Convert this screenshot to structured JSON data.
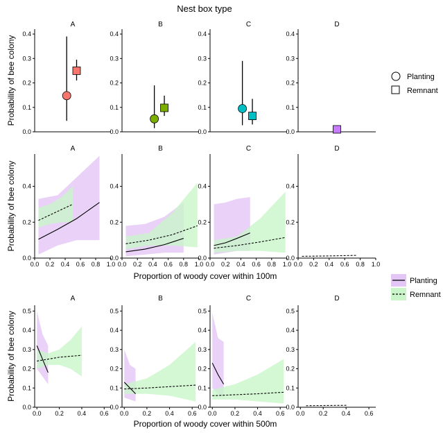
{
  "figure": {
    "top_title": "Nest box type",
    "ylabel": "Probability of bee colony",
    "legend_top": [
      {
        "label": "Planting",
        "shape": "circle"
      },
      {
        "label": "Remnant",
        "shape": "square"
      }
    ],
    "legend_bottom": [
      {
        "label": "Planting",
        "line": "solid"
      },
      {
        "label": "Remnant",
        "line": "dashed"
      }
    ],
    "colors": {
      "A": "#F8766D",
      "B": "#7CAE00",
      "C": "#00BFC4",
      "D": "#C77CFF",
      "planting_band": "#E3C6F5",
      "remnant_band": "#C9F5C9",
      "overlap_band": "#A9CFBE"
    }
  },
  "chart_data": [
    {
      "type": "scatter",
      "panel_row": "nest-box-type",
      "facets": [
        "A",
        "B",
        "C",
        "D"
      ],
      "ylim": [
        0,
        0.42
      ],
      "yticks": [
        "0.0",
        "0.1",
        "0.2",
        "0.3",
        "0.4"
      ],
      "points": [
        {
          "facet": "A",
          "group": "Planting",
          "y": 0.148,
          "lo": 0.045,
          "hi": 0.39
        },
        {
          "facet": "A",
          "group": "Remnant",
          "y": 0.25,
          "lo": 0.21,
          "hi": 0.295
        },
        {
          "facet": "B",
          "group": "Planting",
          "y": 0.053,
          "lo": 0.015,
          "hi": 0.19
        },
        {
          "facet": "B",
          "group": "Remnant",
          "y": 0.098,
          "lo": 0.065,
          "hi": 0.148
        },
        {
          "facet": "C",
          "group": "Planting",
          "y": 0.095,
          "lo": 0.027,
          "hi": 0.29
        },
        {
          "facet": "C",
          "group": "Remnant",
          "y": 0.065,
          "lo": 0.03,
          "hi": 0.135
        },
        {
          "facet": "D",
          "group": "Remnant",
          "y": 0.01,
          "lo": 0.01,
          "hi": 0.01
        }
      ]
    },
    {
      "type": "line",
      "panel_row": "woody-cover-100m",
      "xlabel": "Proportion of woody cover within 100m",
      "facets": [
        "A",
        "B",
        "C",
        "D"
      ],
      "xlim": [
        0,
        1
      ],
      "xticks": [
        "0.0",
        "0.2",
        "0.4",
        "0.6",
        "0.8",
        "1.0"
      ],
      "ylim": [
        0,
        0.58
      ],
      "yticks": [
        "0.0",
        "0.2",
        "0.4"
      ],
      "series": [
        {
          "facet": "A",
          "name": "Planting",
          "x": [
            0.05,
            0.3,
            0.55,
            0.85
          ],
          "y": [
            0.105,
            0.16,
            0.22,
            0.31
          ],
          "lo": [
            0.02,
            0.07,
            0.1,
            0.1
          ],
          "hi": [
            0.33,
            0.35,
            0.45,
            0.57
          ]
        },
        {
          "facet": "A",
          "name": "Remnant",
          "x": [
            0.05,
            0.2,
            0.35,
            0.5
          ],
          "y": [
            0.21,
            0.24,
            0.27,
            0.3
          ],
          "lo": [
            0.17,
            0.19,
            0.2,
            0.2
          ],
          "hi": [
            0.28,
            0.3,
            0.34,
            0.4
          ]
        },
        {
          "facet": "B",
          "name": "Planting",
          "x": [
            0.05,
            0.3,
            0.55,
            0.8
          ],
          "y": [
            0.035,
            0.05,
            0.075,
            0.11
          ],
          "lo": [
            0.01,
            0.02,
            0.03,
            0.03
          ],
          "hi": [
            0.18,
            0.19,
            0.23,
            0.31
          ]
        },
        {
          "facet": "B",
          "name": "Remnant",
          "x": [
            0.05,
            0.35,
            0.65,
            0.98
          ],
          "y": [
            0.08,
            0.1,
            0.13,
            0.18
          ],
          "lo": [
            0.05,
            0.07,
            0.07,
            0.06
          ],
          "hi": [
            0.12,
            0.14,
            0.25,
            0.42
          ]
        },
        {
          "facet": "C",
          "name": "Planting",
          "x": [
            0.05,
            0.2,
            0.35,
            0.52
          ],
          "y": [
            0.07,
            0.085,
            0.11,
            0.14
          ],
          "lo": [
            0.02,
            0.03,
            0.04,
            0.04
          ],
          "hi": [
            0.3,
            0.31,
            0.33,
            0.34
          ]
        },
        {
          "facet": "C",
          "name": "Remnant",
          "x": [
            0.05,
            0.35,
            0.65,
            0.98
          ],
          "y": [
            0.055,
            0.07,
            0.09,
            0.115
          ],
          "lo": [
            0.03,
            0.04,
            0.04,
            0.03
          ],
          "hi": [
            0.1,
            0.12,
            0.22,
            0.37
          ]
        },
        {
          "facet": "D",
          "name": "Remnant",
          "x": [
            0.05,
            0.4,
            0.75
          ],
          "y": [
            0.01,
            0.012,
            0.015
          ],
          "lo": [
            0.01,
            0.012,
            0.015
          ],
          "hi": [
            0.01,
            0.012,
            0.015
          ]
        }
      ]
    },
    {
      "type": "line",
      "panel_row": "woody-cover-500m",
      "xlabel": "Proportion of woody cover within 500m",
      "facets": [
        "A",
        "B",
        "C",
        "D"
      ],
      "xlim": [
        -0.02,
        0.66
      ],
      "xticks": [
        "0.0",
        "0.2",
        "0.4",
        "0.6"
      ],
      "ylim": [
        0,
        0.53
      ],
      "yticks": [
        "0.0",
        "0.1",
        "0.2",
        "0.3",
        "0.4",
        "0.5"
      ],
      "series": [
        {
          "facet": "A",
          "name": "Planting",
          "x": [
            0.0,
            0.05,
            0.1
          ],
          "y": [
            0.32,
            0.25,
            0.18
          ],
          "lo": [
            0.2,
            0.16,
            0.12
          ],
          "hi": [
            0.5,
            0.38,
            0.32
          ]
        },
        {
          "facet": "A",
          "name": "Remnant",
          "x": [
            0.0,
            0.1,
            0.2,
            0.3,
            0.4
          ],
          "y": [
            0.24,
            0.25,
            0.26,
            0.265,
            0.27
          ],
          "lo": [
            0.2,
            0.22,
            0.22,
            0.2,
            0.16
          ],
          "hi": [
            0.3,
            0.28,
            0.3,
            0.35,
            0.42
          ]
        },
        {
          "facet": "B",
          "name": "Planting",
          "x": [
            0.0,
            0.05,
            0.1
          ],
          "y": [
            0.13,
            0.1,
            0.07
          ],
          "lo": [
            0.05,
            0.04,
            0.03
          ],
          "hi": [
            0.3,
            0.22,
            0.2
          ]
        },
        {
          "facet": "B",
          "name": "Remnant",
          "x": [
            0.0,
            0.2,
            0.4,
            0.63
          ],
          "y": [
            0.095,
            0.1,
            0.107,
            0.115
          ],
          "lo": [
            0.07,
            0.07,
            0.06,
            0.03
          ],
          "hi": [
            0.12,
            0.15,
            0.22,
            0.34
          ]
        },
        {
          "facet": "C",
          "name": "Planting",
          "x": [
            0.0,
            0.05,
            0.1
          ],
          "y": [
            0.23,
            0.17,
            0.12
          ],
          "lo": [
            0.1,
            0.07,
            0.05
          ],
          "hi": [
            0.49,
            0.36,
            0.34
          ]
        },
        {
          "facet": "C",
          "name": "Remnant",
          "x": [
            0.0,
            0.2,
            0.4,
            0.63
          ],
          "y": [
            0.06,
            0.065,
            0.07,
            0.078
          ],
          "lo": [
            0.04,
            0.04,
            0.03,
            0.02
          ],
          "hi": [
            0.09,
            0.12,
            0.17,
            0.25
          ]
        },
        {
          "facet": "D",
          "name": "Remnant",
          "x": [
            0.05,
            0.2,
            0.41
          ],
          "y": [
            0.008,
            0.009,
            0.01
          ],
          "lo": [
            0.008,
            0.009,
            0.01
          ],
          "hi": [
            0.008,
            0.009,
            0.01
          ]
        }
      ]
    }
  ]
}
